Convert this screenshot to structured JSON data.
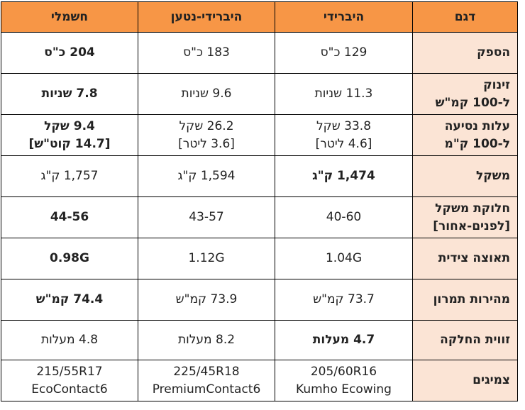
{
  "header": {
    "model": "דגם",
    "hybrid": "היברידי",
    "plugin_hybrid": "היברידי-נטען",
    "electric": "חשמלי"
  },
  "rows": {
    "power": {
      "label": "הספק",
      "hybrid": "129 כ\"ס",
      "plugin_hybrid": "183 כ\"ס",
      "electric": "204 כ\"ס"
    },
    "acceleration": {
      "label_l1": "זינוק",
      "label_l2": "ל-100 קמ\"ש",
      "hybrid": "11.3 שניות",
      "plugin_hybrid": "9.6 שניות",
      "electric": "7.8 שניות"
    },
    "cost": {
      "label_l1": "עלות נסיעה",
      "label_l2": "ל-100 ק\"מ",
      "hybrid_l1": "33.8 שקל",
      "hybrid_l2": "[4.6 ליטר]",
      "plugin_hybrid_l1": "26.2 שקל",
      "plugin_hybrid_l2": "[3.6 ליטר]",
      "electric_l1": "9.4 שקל",
      "electric_l2": "[14.7 קוט\"ש]"
    },
    "weight": {
      "label": "משקל",
      "hybrid": "1,474 ק\"ג",
      "plugin_hybrid": "1,594 ק\"ג",
      "electric": "1,757 ק\"ג"
    },
    "weight_distribution": {
      "label_l1": "חלוקת משקל",
      "label_l2": "[לפנים-אחור]",
      "hybrid": "40-60",
      "plugin_hybrid": "43-57",
      "electric": "44-56"
    },
    "lateral_g": {
      "label": "תאוצה צידית",
      "hybrid": "1.04G",
      "plugin_hybrid": "1.12G",
      "electric": "0.98G"
    },
    "slalom_speed": {
      "label": "מהירות תמרון",
      "hybrid": "73.7 קמ\"ש",
      "plugin_hybrid": "73.9 קמ\"ש",
      "electric": "74.4 קמ\"ש"
    },
    "slip_angle": {
      "label": "זווית החלקה",
      "hybrid": "4.7 מעלות",
      "plugin_hybrid": "8.2 מעלות",
      "electric": "4.8 מעלות"
    },
    "tires": {
      "label": "צמיגים",
      "hybrid_l1": "205/60R16",
      "hybrid_l2": "Kumho Ecowing",
      "plugin_hybrid_l1": "225/45R18",
      "plugin_hybrid_l2": "PremiumContact6",
      "electric_l1": "215/55R17",
      "electric_l2": "EcoContact6"
    }
  },
  "colors": {
    "header_bg": "#f79646",
    "label_bg": "#fbe4d5",
    "border": "#000000"
  }
}
